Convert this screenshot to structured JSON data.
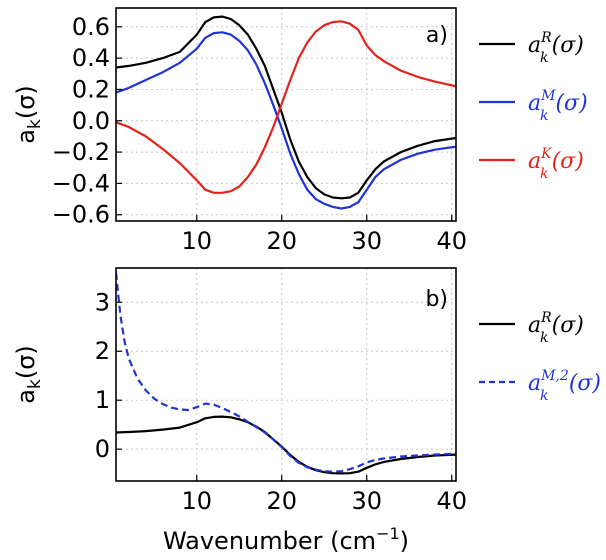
{
  "chart_data": [
    {
      "type": "line",
      "panel_label": "a)",
      "ylabel": "a_k(σ)",
      "xlabel": "",
      "xlim": [
        0.5,
        40.5
      ],
      "ylim": [
        -0.64,
        0.72
      ],
      "x_ticks": [
        10,
        20,
        30,
        40
      ],
      "y_ticks": [
        -0.6,
        -0.4,
        -0.2,
        0.0,
        0.2,
        0.4,
        0.6
      ],
      "y_tick_labels": [
        "−0.6",
        "−0.4",
        "−0.2",
        "0.0",
        "0.2",
        "0.4",
        "0.6"
      ],
      "grid": true,
      "legend_placement": "right",
      "series": [
        {
          "name": "a_k^R(σ)",
          "legend_base": "a",
          "legend_sub": "k",
          "legend_sup": "R",
          "legend_tail": "(σ)",
          "color": "#000000",
          "dash": "solid",
          "x": [
            0.5,
            2,
            4,
            6,
            8,
            10,
            11,
            12,
            13,
            14,
            15,
            16,
            17,
            18,
            19,
            20,
            21,
            22,
            23,
            24,
            25,
            26,
            27,
            28,
            29,
            30,
            31,
            32,
            34,
            36,
            38,
            40.5
          ],
          "y": [
            0.34,
            0.35,
            0.37,
            0.4,
            0.44,
            0.55,
            0.63,
            0.66,
            0.665,
            0.65,
            0.61,
            0.55,
            0.46,
            0.35,
            0.2,
            0.05,
            -0.12,
            -0.26,
            -0.36,
            -0.43,
            -0.47,
            -0.49,
            -0.495,
            -0.49,
            -0.46,
            -0.38,
            -0.31,
            -0.26,
            -0.2,
            -0.16,
            -0.13,
            -0.11
          ]
        },
        {
          "name": "a_k^M(σ)",
          "legend_base": "a",
          "legend_sub": "k",
          "legend_sup": "M",
          "legend_tail": "(σ)",
          "color": "#1f33d6",
          "dash": "solid",
          "x": [
            0.5,
            2,
            4,
            6,
            8,
            10,
            11,
            12,
            13,
            14,
            15,
            16,
            17,
            18,
            19,
            20,
            21,
            22,
            23,
            24,
            25,
            26,
            27,
            28,
            29,
            30,
            31,
            32,
            34,
            36,
            38,
            40.5
          ],
          "y": [
            0.18,
            0.21,
            0.26,
            0.31,
            0.37,
            0.46,
            0.53,
            0.56,
            0.565,
            0.55,
            0.51,
            0.45,
            0.36,
            0.24,
            0.1,
            -0.05,
            -0.21,
            -0.34,
            -0.44,
            -0.5,
            -0.53,
            -0.55,
            -0.56,
            -0.55,
            -0.52,
            -0.44,
            -0.36,
            -0.31,
            -0.25,
            -0.21,
            -0.185,
            -0.165
          ]
        },
        {
          "name": "a_k^K(σ)",
          "legend_base": "a",
          "legend_sub": "k",
          "legend_sup": "K",
          "legend_tail": "(σ)",
          "color": "#e3231c",
          "dash": "solid",
          "x": [
            0.5,
            2,
            4,
            6,
            8,
            10,
            11,
            12,
            13,
            14,
            15,
            16,
            17,
            18,
            19,
            20,
            21,
            22,
            23,
            24,
            25,
            26,
            27,
            28,
            29,
            30,
            31,
            32,
            34,
            36,
            38,
            40.5
          ],
          "y": [
            -0.01,
            -0.04,
            -0.1,
            -0.18,
            -0.27,
            -0.38,
            -0.44,
            -0.46,
            -0.46,
            -0.45,
            -0.42,
            -0.36,
            -0.28,
            -0.17,
            -0.04,
            0.11,
            0.26,
            0.4,
            0.5,
            0.57,
            0.61,
            0.63,
            0.635,
            0.62,
            0.58,
            0.48,
            0.42,
            0.38,
            0.32,
            0.28,
            0.25,
            0.22
          ]
        }
      ]
    },
    {
      "type": "line",
      "panel_label": "b)",
      "ylabel": "a_k(σ)",
      "xlabel": "Wavenumber (cm−1)",
      "xlabel_main": "Wavenumber (cm",
      "xlabel_sup": "−1",
      "xlabel_tail": ")",
      "xlim": [
        0.5,
        40.5
      ],
      "ylim": [
        -0.65,
        3.7
      ],
      "x_ticks": [
        10,
        20,
        30,
        40
      ],
      "y_ticks": [
        0,
        1,
        2,
        3
      ],
      "y_tick_labels": [
        "0",
        "1",
        "2",
        "3"
      ],
      "grid": true,
      "legend_placement": "right",
      "series": [
        {
          "name": "a_k^R(σ)",
          "legend_base": "a",
          "legend_sub": "k",
          "legend_sup": "R",
          "legend_tail": "(σ)",
          "color": "#000000",
          "dash": "solid",
          "x": [
            0.5,
            2,
            4,
            6,
            8,
            10,
            11,
            12,
            13,
            14,
            15,
            16,
            17,
            18,
            19,
            20,
            21,
            22,
            23,
            24,
            25,
            26,
            27,
            28,
            29,
            30,
            31,
            32,
            34,
            36,
            38,
            40.5
          ],
          "y": [
            0.34,
            0.35,
            0.37,
            0.4,
            0.44,
            0.55,
            0.63,
            0.66,
            0.665,
            0.65,
            0.61,
            0.55,
            0.46,
            0.35,
            0.2,
            0.05,
            -0.12,
            -0.26,
            -0.36,
            -0.43,
            -0.47,
            -0.49,
            -0.495,
            -0.49,
            -0.46,
            -0.38,
            -0.31,
            -0.26,
            -0.2,
            -0.16,
            -0.13,
            -0.11
          ]
        },
        {
          "name": "a_k^{M,2}(σ)",
          "legend_base": "a",
          "legend_sub": "k",
          "legend_sup": "M,2",
          "legend_tail": "(σ)",
          "color": "#1f33d6",
          "dash": "dashed",
          "x": [
            0.5,
            1,
            1.5,
            2,
            3,
            4,
            5,
            6,
            7,
            8,
            9,
            10,
            11,
            12,
            13,
            14,
            15,
            16,
            17,
            18,
            19,
            20,
            21,
            22,
            23,
            24,
            25,
            26,
            27,
            28,
            29,
            30,
            31,
            32,
            34,
            36,
            38,
            40.5
          ],
          "y": [
            3.6,
            2.75,
            2.2,
            1.85,
            1.45,
            1.2,
            1.03,
            0.92,
            0.85,
            0.81,
            0.8,
            0.86,
            0.93,
            0.91,
            0.84,
            0.76,
            0.67,
            0.56,
            0.45,
            0.34,
            0.2,
            0.04,
            -0.14,
            -0.28,
            -0.37,
            -0.42,
            -0.45,
            -0.46,
            -0.45,
            -0.41,
            -0.35,
            -0.27,
            -0.22,
            -0.19,
            -0.15,
            -0.13,
            -0.11,
            -0.09
          ]
        }
      ]
    }
  ]
}
